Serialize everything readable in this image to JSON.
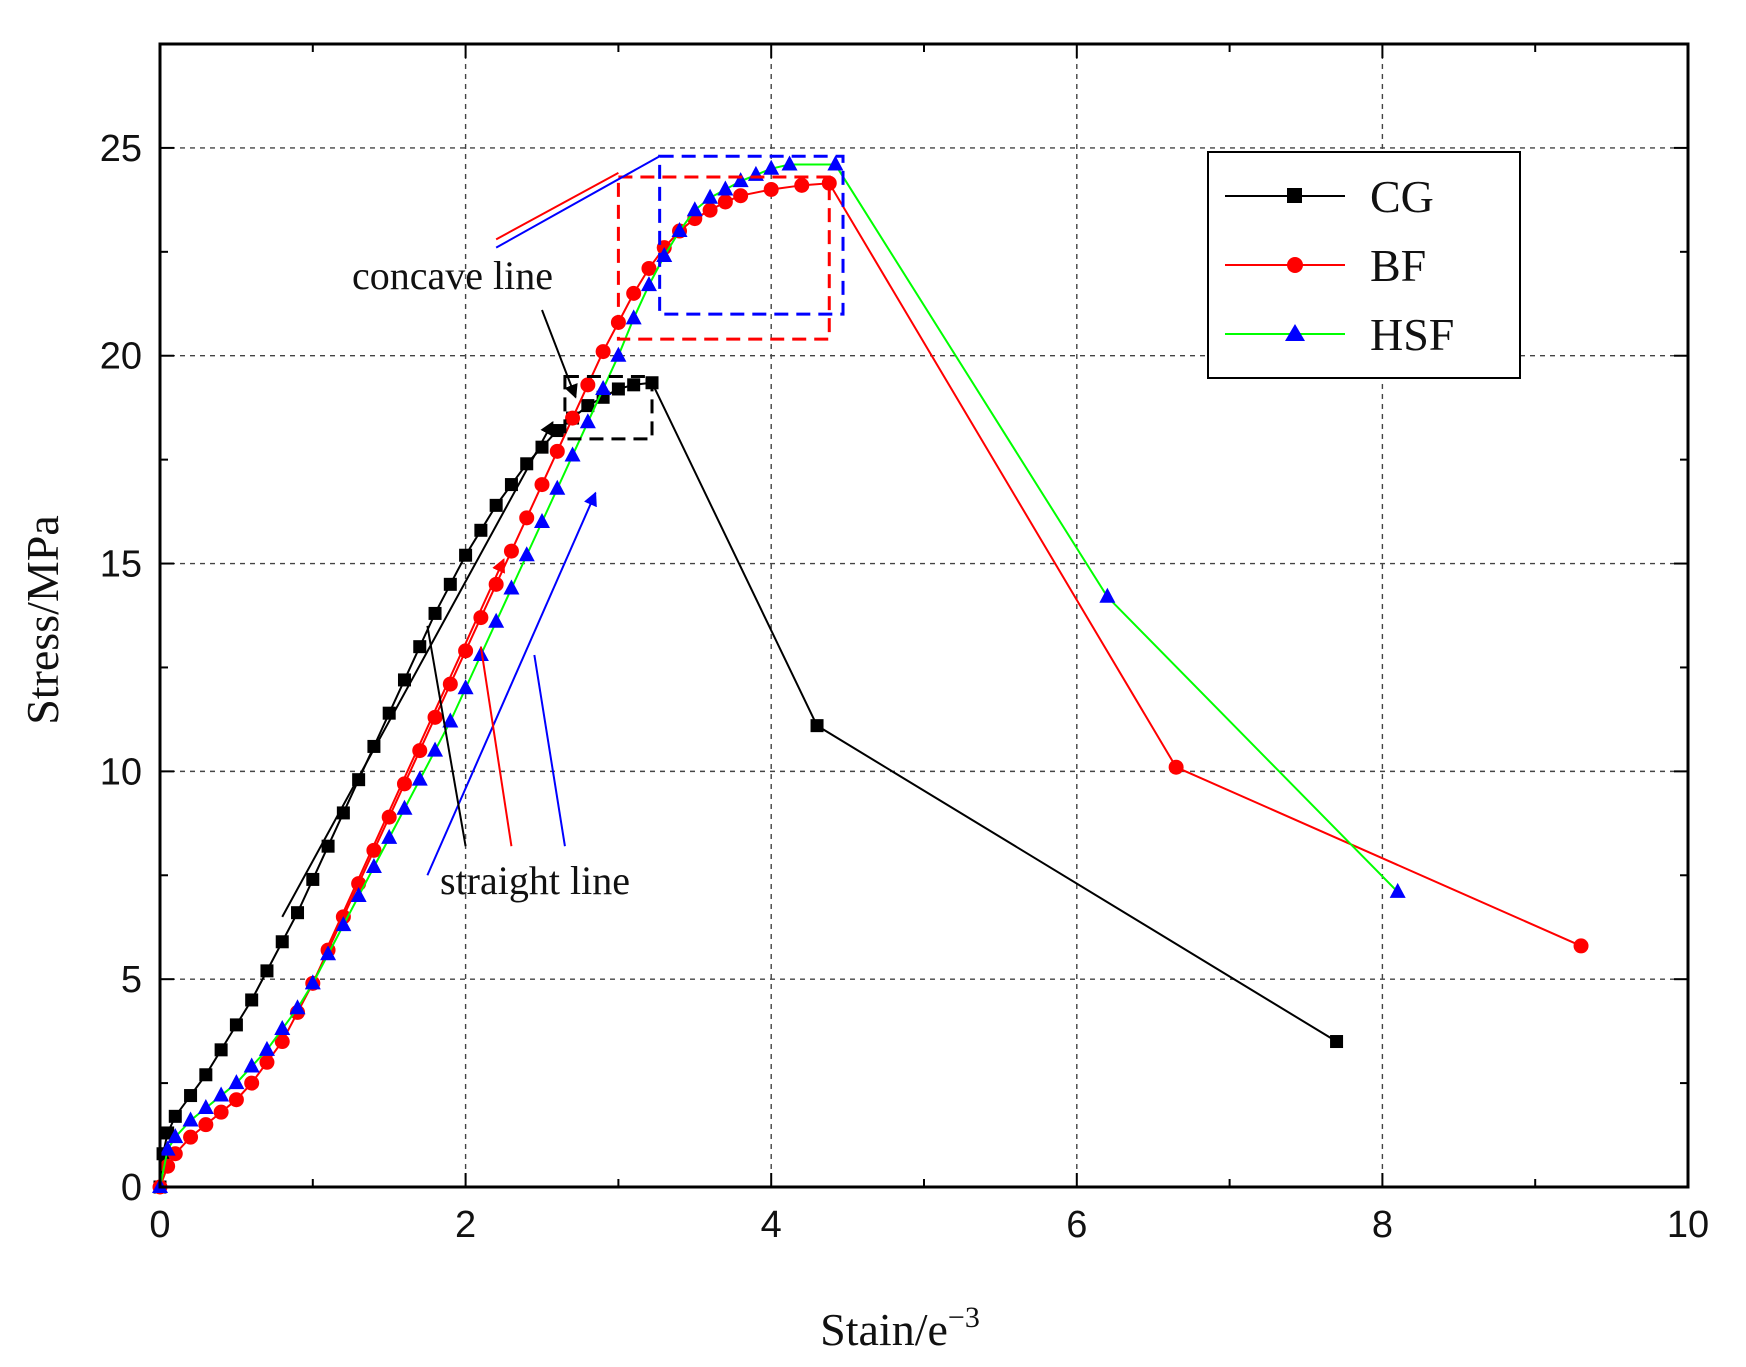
{
  "chart_data": {
    "type": "line",
    "title": "",
    "xlabel": "Stain/e",
    "xlabel_superscript": "−3",
    "ylabel": "Stress/MPa",
    "xlim": [
      0,
      10
    ],
    "ylim": [
      0,
      27.5
    ],
    "x_ticks": [
      "0",
      "2",
      "4",
      "6",
      "8",
      "10"
    ],
    "y_ticks": [
      "0",
      "5",
      "10",
      "15",
      "20",
      "25"
    ],
    "grid": true,
    "legend_position": "top-right",
    "series": [
      {
        "name": "CG",
        "color": "#000000",
        "marker": "square",
        "x": [
          0,
          0.02,
          0.05,
          0.1,
          0.2,
          0.3,
          0.4,
          0.5,
          0.6,
          0.7,
          0.8,
          0.9,
          1.0,
          1.1,
          1.2,
          1.3,
          1.4,
          1.5,
          1.6,
          1.7,
          1.8,
          1.9,
          2.0,
          2.1,
          2.2,
          2.3,
          2.4,
          2.5,
          2.6,
          2.7,
          2.8,
          2.9,
          3.0,
          3.1,
          3.22,
          4.3,
          7.7
        ],
        "y": [
          0,
          0.8,
          1.3,
          1.7,
          2.2,
          2.7,
          3.3,
          3.9,
          4.5,
          5.2,
          5.9,
          6.6,
          7.4,
          8.2,
          9.0,
          9.8,
          10.6,
          11.4,
          12.2,
          13.0,
          13.8,
          14.5,
          15.2,
          15.8,
          16.4,
          16.9,
          17.4,
          17.8,
          18.2,
          18.5,
          18.8,
          19.0,
          19.2,
          19.3,
          19.35,
          11.1,
          3.5
        ]
      },
      {
        "name": "BF",
        "color": "#ff0000",
        "marker": "circle",
        "x": [
          0,
          0.05,
          0.1,
          0.2,
          0.3,
          0.4,
          0.5,
          0.6,
          0.7,
          0.8,
          0.9,
          1.0,
          1.1,
          1.2,
          1.3,
          1.4,
          1.5,
          1.6,
          1.7,
          1.8,
          1.9,
          2.0,
          2.1,
          2.2,
          2.3,
          2.4,
          2.5,
          2.6,
          2.7,
          2.8,
          2.9,
          3.0,
          3.1,
          3.2,
          3.3,
          3.4,
          3.5,
          3.6,
          3.7,
          3.8,
          4.0,
          4.2,
          4.38,
          6.65,
          9.3
        ],
        "y": [
          0,
          0.5,
          0.8,
          1.2,
          1.5,
          1.8,
          2.1,
          2.5,
          3.0,
          3.5,
          4.2,
          4.9,
          5.7,
          6.5,
          7.3,
          8.1,
          8.9,
          9.7,
          10.5,
          11.3,
          12.1,
          12.9,
          13.7,
          14.5,
          15.3,
          16.1,
          16.9,
          17.7,
          18.5,
          19.3,
          20.1,
          20.8,
          21.5,
          22.1,
          22.6,
          23.0,
          23.3,
          23.5,
          23.7,
          23.85,
          24.0,
          24.1,
          24.15,
          10.1,
          5.8
        ]
      },
      {
        "name": "HSF",
        "color": "#00ff00",
        "marker": "triangle",
        "marker_color": "#0000ff",
        "x": [
          0,
          0.05,
          0.1,
          0.2,
          0.3,
          0.4,
          0.5,
          0.6,
          0.7,
          0.8,
          0.9,
          1.0,
          1.1,
          1.2,
          1.3,
          1.4,
          1.5,
          1.6,
          1.7,
          1.8,
          1.9,
          2.0,
          2.1,
          2.2,
          2.3,
          2.4,
          2.5,
          2.6,
          2.7,
          2.8,
          2.9,
          3.0,
          3.1,
          3.2,
          3.3,
          3.4,
          3.5,
          3.6,
          3.7,
          3.8,
          3.9,
          4.0,
          4.12,
          4.42,
          6.2,
          8.1
        ],
        "y": [
          0,
          0.9,
          1.2,
          1.6,
          1.9,
          2.2,
          2.5,
          2.9,
          3.3,
          3.8,
          4.3,
          4.9,
          5.6,
          6.3,
          7.0,
          7.7,
          8.4,
          9.1,
          9.8,
          10.5,
          11.2,
          12.0,
          12.8,
          13.6,
          14.4,
          15.2,
          16.0,
          16.8,
          17.6,
          18.4,
          19.2,
          20.0,
          20.9,
          21.7,
          22.4,
          23.0,
          23.5,
          23.8,
          24.0,
          24.2,
          24.35,
          24.5,
          24.6,
          24.6,
          14.2,
          7.1
        ]
      }
    ],
    "annotations": [
      {
        "text": "concave line"
      },
      {
        "text": "straight line"
      }
    ]
  }
}
